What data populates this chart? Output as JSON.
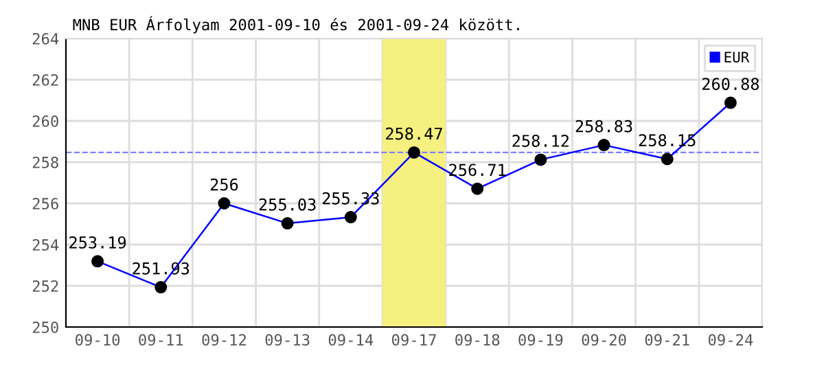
{
  "chart_data": {
    "type": "line",
    "title": "MNB EUR Árfolyam 2001-09-10 és 2001-09-24 között.",
    "categories": [
      "09-10",
      "09-11",
      "09-12",
      "09-13",
      "09-14",
      "09-17",
      "09-18",
      "09-19",
      "09-20",
      "09-21",
      "09-24"
    ],
    "series": [
      {
        "name": "EUR",
        "color": "#0000ff",
        "values": [
          253.19,
          251.93,
          256,
          255.03,
          255.33,
          258.47,
          256.71,
          258.12,
          258.83,
          258.15,
          260.88
        ]
      }
    ],
    "ylim": [
      250,
      264
    ],
    "yticks": [
      250,
      252,
      254,
      256,
      258,
      260,
      262,
      264
    ],
    "ref_lines": [
      {
        "axis": "y",
        "value": 258.47,
        "color": "#8080ff",
        "line_style": "dashed"
      }
    ],
    "bands": [
      {
        "axis": "x",
        "from": "09-17",
        "to": "09-17",
        "color": "#f5f080"
      }
    ],
    "data_labels": true,
    "grid": true,
    "legend": "top right",
    "marker": "circle",
    "line_style": "solid"
  }
}
